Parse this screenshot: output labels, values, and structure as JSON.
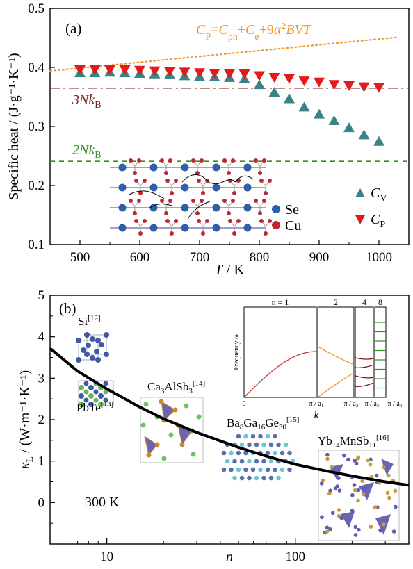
{
  "chart_data": [
    {
      "panel": "(a)",
      "type": "scatter",
      "ylabel": "Specific heat / (J·g⁻¹·K⁻¹)",
      "xlabel_var": "T",
      "xlabel_unit": " / K",
      "xlim": [
        450,
        1050
      ],
      "ylim": [
        0.1,
        0.5
      ],
      "xticks": [
        500,
        600,
        700,
        800,
        900,
        1000
      ],
      "yticks": [
        0.1,
        0.2,
        0.3,
        0.4,
        0.5
      ],
      "series": [
        {
          "name": "Cv",
          "label_sub": "V",
          "color": "#3a8486",
          "marker": "triangle-up",
          "x": [
            500,
            525,
            550,
            575,
            600,
            625,
            650,
            675,
            700,
            725,
            750,
            775,
            800,
            825,
            850,
            875,
            900,
            925,
            950,
            975,
            1000
          ],
          "y": [
            0.39,
            0.39,
            0.391,
            0.39,
            0.389,
            0.388,
            0.387,
            0.385,
            0.384,
            0.383,
            0.382,
            0.38,
            0.37,
            0.357,
            0.346,
            0.332,
            0.32,
            0.309,
            0.297,
            0.285,
            0.274
          ]
        },
        {
          "name": "Cp",
          "label_sub": "P",
          "color": "#e31a1c",
          "marker": "triangle-down",
          "x": [
            500,
            525,
            550,
            575,
            600,
            625,
            650,
            675,
            700,
            725,
            750,
            775,
            800,
            825,
            850,
            875,
            900,
            925,
            950,
            975,
            1000
          ],
          "y": [
            0.397,
            0.397,
            0.397,
            0.397,
            0.396,
            0.395,
            0.394,
            0.393,
            0.392,
            0.391,
            0.39,
            0.39,
            0.387,
            0.384,
            0.382,
            0.378,
            0.376,
            0.372,
            0.37,
            0.368,
            0.367
          ]
        }
      ],
      "ref_lines": [
        {
          "label": "3Nk",
          "sub": "B",
          "y": 0.365,
          "color": "#7a1f1f",
          "style": "dashdot"
        },
        {
          "label": "2Nk",
          "sub": "B",
          "y": 0.241,
          "color": "#3c8c1e",
          "style": "dashed"
        }
      ],
      "fit_line": {
        "label": "C_P = C_ph + C_e + 9α²BVT",
        "x": [
          450,
          1030
        ],
        "y": [
          0.394,
          0.451
        ],
        "color": "#f0962e",
        "style": "dotted"
      },
      "formula": {
        "parts": [
          [
            "C",
            "i"
          ],
          [
            "P",
            "sub"
          ],
          [
            "=",
            "n"
          ],
          [
            "C",
            "i"
          ],
          [
            "ph",
            "sub"
          ],
          [
            "+",
            "n"
          ],
          [
            "C",
            "i"
          ],
          [
            "e",
            "sub"
          ],
          [
            "+9",
            "n"
          ],
          [
            "α",
            "i"
          ],
          [
            "2",
            "sup"
          ],
          [
            "BVT",
            "i"
          ]
        ]
      },
      "inset_legend": [
        {
          "label": "Se",
          "color": "#2f5fa8"
        },
        {
          "label": "Cu",
          "color": "#c0262d"
        }
      ]
    },
    {
      "panel": "(b)",
      "type": "line",
      "ylabel_sub": "L",
      "ylabel_units": " / (W·m⁻¹·K⁻¹)",
      "xlabel": "n",
      "xscale": "log",
      "xlim": [
        5,
        400
      ],
      "ylim": [
        -1,
        5
      ],
      "xticks": [
        10,
        100
      ],
      "yticks": [
        0,
        1,
        2,
        3,
        4,
        5
      ],
      "series": [
        {
          "name": "",
          "color": "#000000",
          "x": [
            5,
            7,
            10,
            15,
            20,
            30,
            50,
            70,
            100,
            150,
            200,
            300,
            400
          ],
          "y": [
            3.72,
            3.17,
            2.74,
            2.3,
            2.02,
            1.69,
            1.33,
            1.12,
            0.92,
            0.75,
            0.64,
            0.5,
            0.42
          ]
        }
      ],
      "temperature_label": "300 K",
      "compounds": [
        {
          "name": "Si",
          "ref": "[12]"
        },
        {
          "name": "PbTe",
          "ref": "[13]"
        },
        {
          "name": "Ca3AlSb3",
          "ref": "[14]"
        },
        {
          "name": "Ba8Ga16Ge30",
          "ref": "[15]"
        },
        {
          "name": "Yb14MnSb11",
          "ref": "[16]"
        }
      ],
      "inset": {
        "ylabel": "Frequency ω",
        "xlabel": "k",
        "n_labels": [
          "n = 1",
          "2",
          "4",
          "8"
        ],
        "xtick_labels": [
          "0",
          "π / a₁",
          "π / a₂",
          "π / a₃",
          "π / a₄"
        ],
        "colors": [
          "#cc2020",
          "#ef8d22",
          "#7a1010",
          "#2e8b1e"
        ]
      }
    }
  ]
}
